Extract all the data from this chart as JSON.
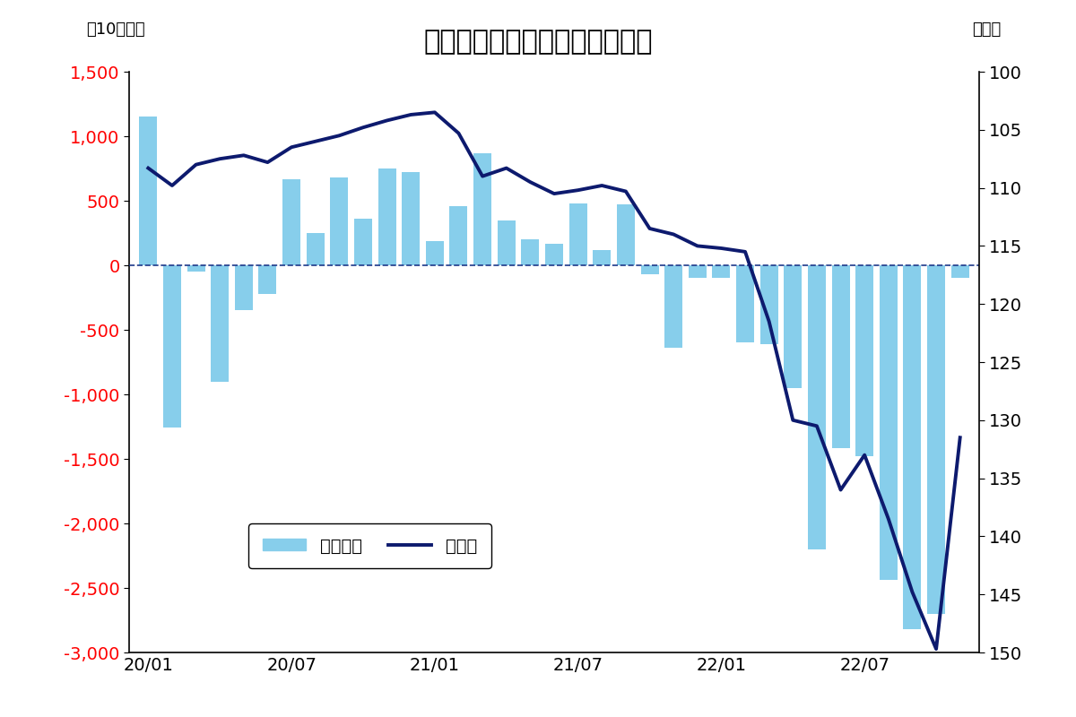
{
  "title": "日本の貳易収支とドル／円相場",
  "left_label": "（10億円）",
  "right_label": "（円）",
  "background_color": "#ffffff",
  "bar_color": "#87CEEB",
  "line_color": "#0d1a6e",
  "left_yticks": [
    1500,
    1000,
    500,
    0,
    -500,
    -1000,
    -1500,
    -2000,
    -2500,
    -3000
  ],
  "right_yticks": [
    100,
    105,
    110,
    115,
    120,
    125,
    130,
    135,
    140,
    145,
    150
  ],
  "ylim_left": [
    -3000,
    1500
  ],
  "ylim_right_bottom": 150,
  "ylim_right_top": 100,
  "xtick_labels": [
    "20/01",
    "20/07",
    "21/01",
    "21/07",
    "22/01",
    "22/07"
  ],
  "xtick_positions": [
    0,
    6,
    12,
    18,
    24,
    30
  ],
  "trade_balance": [
    1150,
    -1260,
    -50,
    -900,
    -350,
    -220,
    670,
    250,
    680,
    360,
    750,
    720,
    190,
    460,
    870,
    350,
    200,
    170,
    480,
    120,
    470,
    -70,
    -640,
    -100,
    -100,
    -600,
    -610,
    -950,
    -2200,
    -1420,
    -1480,
    -2440,
    -2820,
    -2700,
    -100
  ],
  "usd_jpy": [
    108.3,
    109.8,
    108.0,
    107.5,
    107.2,
    107.8,
    106.5,
    106.0,
    105.5,
    104.8,
    104.2,
    103.7,
    103.5,
    105.3,
    109.0,
    108.3,
    109.5,
    110.5,
    110.2,
    109.8,
    110.3,
    113.5,
    114.0,
    115.0,
    115.2,
    115.5,
    121.5,
    130.0,
    130.5,
    136.0,
    133.0,
    138.5,
    144.8,
    149.7,
    131.5
  ],
  "zero_line_color": "#1e3a8a",
  "legend_bar_label": "貳易収支",
  "legend_line_label": "ドル円",
  "n_months": 35
}
